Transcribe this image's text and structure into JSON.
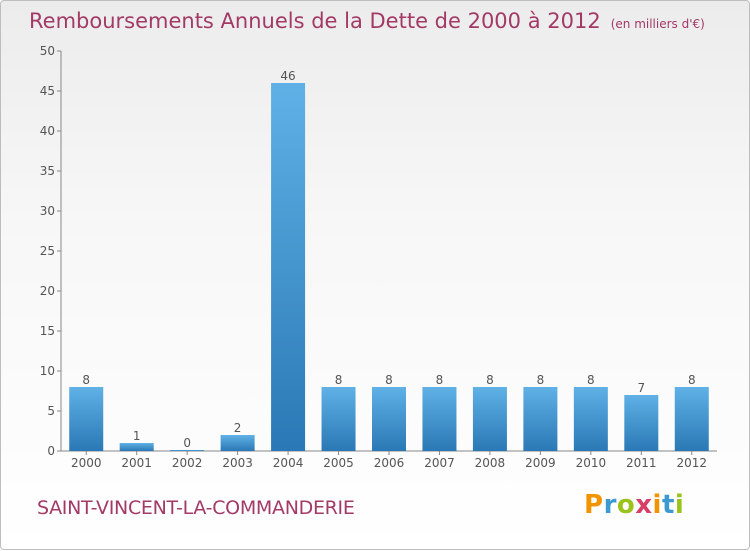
{
  "title": "Remboursements Annuels de la Dette de 2000 à 2012",
  "subtitle": "(en milliers d'€)",
  "commune": "SAINT-VINCENT-LA-COMMANDERIE",
  "logo": {
    "letters": [
      "P",
      "r",
      "o",
      "x",
      "i",
      "t",
      "i"
    ],
    "colors": [
      "#f29400",
      "#3c9ad1",
      "#9bc31c",
      "#d73e68",
      "#f29400",
      "#3c9ad1",
      "#9bc31c"
    ]
  },
  "colors": {
    "bar_light": "#5fb1e6",
    "bar_dark": "#2a78b5",
    "title": "#a33a66"
  },
  "chart_data": {
    "type": "bar",
    "title": "Remboursements Annuels de la Dette de 2000 à 2012",
    "xlabel": "",
    "ylabel": "",
    "categories": [
      "2000",
      "2001",
      "2002",
      "2003",
      "2004",
      "2005",
      "2006",
      "2007",
      "2008",
      "2009",
      "2010",
      "2011",
      "2012"
    ],
    "values": [
      8,
      1,
      0,
      2,
      46,
      8,
      8,
      8,
      8,
      8,
      8,
      7,
      8
    ],
    "ylim": [
      0,
      50
    ],
    "yticks": [
      0,
      5,
      10,
      15,
      20,
      25,
      30,
      35,
      40,
      45,
      50
    ],
    "grid": false
  }
}
